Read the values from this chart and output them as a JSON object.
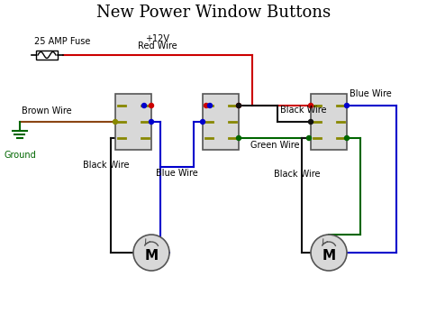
{
  "title": "New Power Window Buttons",
  "title_fontsize": 13,
  "wire_colors": {
    "red": "#cc0000",
    "blue": "#0000cc",
    "black": "#111111",
    "brown": "#8B4513",
    "green": "#006600"
  },
  "fuse_label": "25 AMP Fuse",
  "plus12v_label": "+12V",
  "red_wire_label": "Red Wire",
  "brown_wire_label": "Brown Wire",
  "blue_wire_label1": "Blue Wire",
  "blue_wire_label2": "Blue Wire",
  "black_wire_label1": "Black Wire",
  "black_wire_label2": "Black Wire",
  "green_wire_label": "Green Wire",
  "black_wire_label3": "Black Wire",
  "ground_label": "Ground",
  "pin_color": "#888800",
  "box_face": "#d8d8d8",
  "box_edge": "#555555",
  "motor_face": "#d8d8d8",
  "motor_edge": "#555555"
}
